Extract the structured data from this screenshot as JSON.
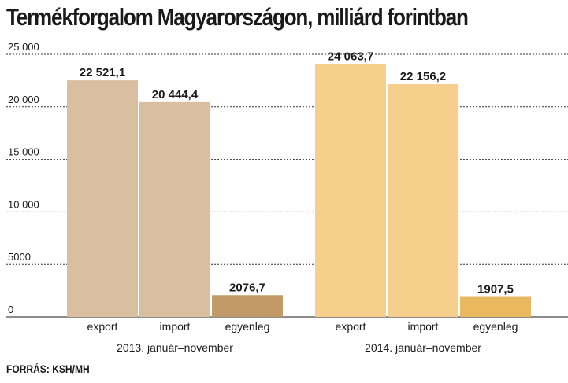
{
  "chart_data": {
    "type": "bar",
    "title": "Termékforgalom Magyarországon, milliárd forintban",
    "source": "FORRÁS: KSH/MH",
    "ylim": [
      0,
      25000
    ],
    "yticks": [
      0,
      5000,
      10000,
      15000,
      20000,
      25000
    ],
    "ytick_labels": [
      "0",
      "5000",
      "10 000",
      "15 000",
      "20 000",
      "25 000"
    ],
    "grid": true,
    "groups": [
      {
        "name": "2013. január–november",
        "colors": [
          "#d9bf9f",
          "#d9bf9f",
          "#c29a68"
        ],
        "bars": [
          {
            "category": "export",
            "value": 22521.1,
            "label": "22 521,1"
          },
          {
            "category": "import",
            "value": 20444.4,
            "label": "20 444,4"
          },
          {
            "category": "egyenleg",
            "value": 2076.7,
            "label": "2076,7"
          }
        ]
      },
      {
        "name": "2014. január–november",
        "colors": [
          "#f7cf8c",
          "#f7cf8c",
          "#eab85f"
        ],
        "bars": [
          {
            "category": "export",
            "value": 24063.7,
            "label": "24 063,7"
          },
          {
            "category": "import",
            "value": 22156.2,
            "label": "22 156,2"
          },
          {
            "category": "egyenleg",
            "value": 1907.5,
            "label": "1907,5"
          }
        ]
      }
    ]
  }
}
